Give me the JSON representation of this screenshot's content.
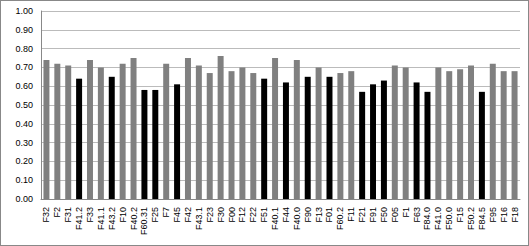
{
  "chart_data": {
    "type": "bar",
    "categories": [
      "F32",
      "F2",
      "F31",
      "F41.2",
      "F33",
      "F41.1",
      "F43.2",
      "F10",
      "F40.2",
      "F60.31",
      "F25",
      "F7",
      "F45",
      "F42",
      "F43.1",
      "F23",
      "F30",
      "F00",
      "F12",
      "F22",
      "F51",
      "F40.1",
      "F44",
      "F40.0",
      "F90",
      "F13",
      "F01",
      "F60.2",
      "F11",
      "F21",
      "F91",
      "F50",
      "F05",
      "F1",
      "F63",
      "F84.0",
      "F41.0",
      "F50.0",
      "F15",
      "F50.2",
      "F84.5",
      "F95",
      "F16",
      "F18"
    ],
    "values": [
      0.74,
      0.72,
      0.71,
      0.64,
      0.74,
      0.7,
      0.65,
      0.72,
      0.75,
      0.58,
      0.58,
      0.72,
      0.61,
      0.75,
      0.71,
      0.67,
      0.76,
      0.68,
      0.7,
      0.67,
      0.64,
      0.75,
      0.62,
      0.74,
      0.65,
      0.7,
      0.65,
      0.67,
      0.68,
      0.57,
      0.61,
      0.63,
      0.71,
      0.7,
      0.62,
      0.57,
      0.7,
      0.68,
      0.69,
      0.71,
      0.57,
      0.72,
      0.68,
      0.68
    ],
    "colors": [
      "#808080",
      "#808080",
      "#808080",
      "#000000",
      "#808080",
      "#808080",
      "#000000",
      "#808080",
      "#808080",
      "#000000",
      "#000000",
      "#808080",
      "#000000",
      "#808080",
      "#808080",
      "#808080",
      "#808080",
      "#808080",
      "#808080",
      "#808080",
      "#000000",
      "#808080",
      "#000000",
      "#808080",
      "#000000",
      "#808080",
      "#000000",
      "#808080",
      "#808080",
      "#000000",
      "#000000",
      "#000000",
      "#808080",
      "#808080",
      "#000000",
      "#000000",
      "#808080",
      "#808080",
      "#808080",
      "#808080",
      "#000000",
      "#808080",
      "#808080",
      "#808080"
    ],
    "ylim": [
      0,
      1
    ],
    "yticks": [
      {
        "value": 0,
        "label": "0.00"
      },
      {
        "value": 0.1,
        "label": "0.10"
      },
      {
        "value": 0.2,
        "label": "0.20"
      },
      {
        "value": 0.3,
        "label": "0.30"
      },
      {
        "value": 0.4,
        "label": "0.40"
      },
      {
        "value": 0.5,
        "label": "0.50"
      },
      {
        "value": 0.6,
        "label": "0.60"
      },
      {
        "value": 0.7,
        "label": "0.70"
      },
      {
        "value": 0.8,
        "label": "0.80"
      },
      {
        "value": 0.9,
        "label": "0.90"
      },
      {
        "value": 1,
        "label": "1.00"
      }
    ],
    "grid": true
  }
}
